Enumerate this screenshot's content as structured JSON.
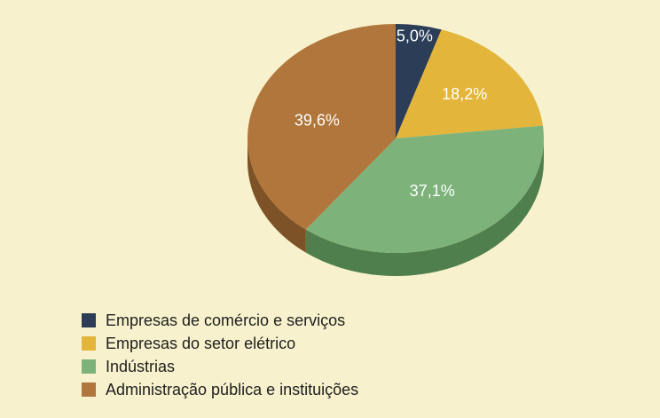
{
  "chart_data": {
    "type": "pie",
    "title": "",
    "legend_position": "bottom-left",
    "start_angle": "12 o'clock",
    "direction": "clockwise",
    "categories": [
      "Empresas de comércio e serviços",
      "Empresas do setor elétrico",
      "Indústrias",
      "Administração pública e instituições"
    ],
    "values": [
      5.0,
      18.2,
      37.1,
      39.6
    ],
    "labels": [
      "5,0%",
      "18,2%",
      "37,1%",
      "39,6%"
    ],
    "colors": [
      "#2b3d57",
      "#e3b53b",
      "#7db37b",
      "#b0763b"
    ],
    "side_colors": [
      "#1c2a3e",
      "#a88426",
      "#4f7f4c",
      "#7d5226"
    ]
  }
}
